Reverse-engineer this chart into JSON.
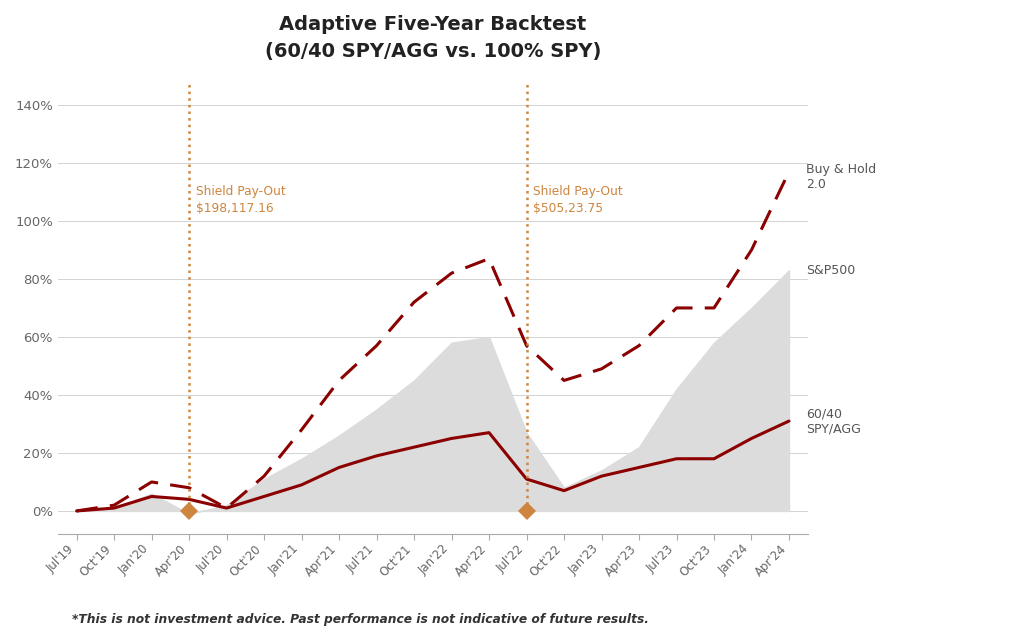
{
  "title": "Adaptive Five-Year Backtest\n(60/40 SPY/AGG vs. 100% SPY)",
  "disclaimer": "*This is not investment advice. Past performance is not indicative of future results.",
  "background_color": "#ffffff",
  "yticks": [
    0,
    20,
    40,
    60,
    80,
    100,
    120,
    140
  ],
  "ylim": [
    -8,
    150
  ],
  "line_color": "#8B0000",
  "fill_color": "#DCDCDC",
  "shield_color": "#CD853F",
  "xtick_labels": [
    "Jul'19",
    "Oct'19",
    "Jan'20",
    "Apr'20",
    "Jul'20",
    "Oct'20",
    "Jan'21",
    "Apr'21",
    "Jul'21",
    "Oct'21",
    "Jan'22",
    "Apr'22",
    "Jul'22",
    "Oct'22",
    "Jan'23",
    "Apr'23",
    "Jul'23",
    "Oct'23",
    "Jan'24",
    "Apr'24"
  ],
  "sp500": [
    0,
    1,
    6,
    -1,
    2,
    11,
    18,
    26,
    35,
    45,
    58,
    60,
    27,
    8,
    14,
    22,
    42,
    58,
    70,
    83
  ],
  "line_6040": [
    0,
    1,
    5,
    4,
    1,
    5,
    9,
    15,
    19,
    22,
    25,
    27,
    11,
    7,
    12,
    15,
    18,
    18,
    25,
    31
  ],
  "buy_hold": [
    0,
    2,
    10,
    8,
    1,
    12,
    28,
    45,
    57,
    72,
    82,
    87,
    57,
    45,
    49,
    57,
    70,
    70,
    90,
    117
  ],
  "shield1_idx": 3,
  "shield1_label_line1": "Shield Pay-Out",
  "shield1_label_line2": "$198,117.16",
  "shield2_idx": 12,
  "shield2_label_line1": "Shield Pay-Out",
  "shield2_label_line2": "$505,23.75",
  "label_sp500": "S&P500",
  "label_6040": "60/40\nSPY/AGG",
  "label_buyhold": "Buy & Hold\n2.0"
}
